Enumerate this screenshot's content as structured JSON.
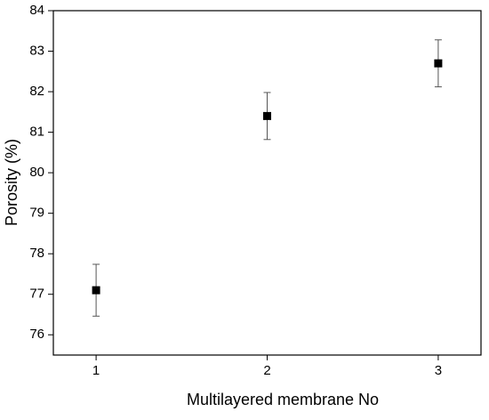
{
  "chart_data": {
    "type": "scatter",
    "x_label": "Multilayered membrane No",
    "y_label": "Porosity (%)",
    "x": [
      1,
      2,
      3
    ],
    "values": [
      77.1,
      81.4,
      82.7
    ],
    "errors": [
      0.64,
      0.58,
      0.58
    ],
    "color": "#000000",
    "xlim": [
      0.75,
      3.25
    ],
    "xticks": [
      1,
      2,
      3
    ],
    "ylim": [
      75.5,
      84
    ],
    "yticks": [
      76,
      77,
      78,
      79,
      80,
      81,
      82,
      83,
      84
    ]
  }
}
